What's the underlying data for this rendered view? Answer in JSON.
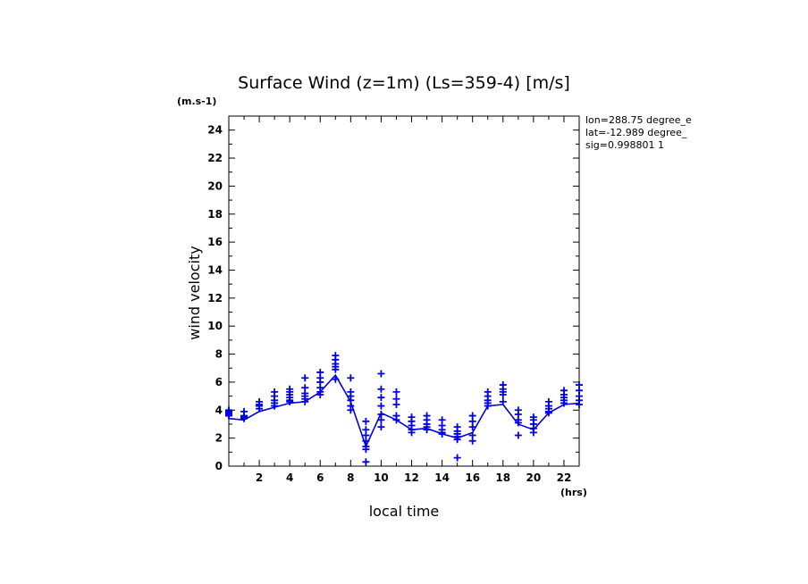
{
  "chart_data": {
    "type": "scatter",
    "title": "Surface Wind (z=1m) (Ls=359-4) [m/s]",
    "units_label": "(m.s-1)",
    "xlabel": "local time",
    "xunit_label": "(hrs)",
    "ylabel": "wind velocity",
    "xlim": [
      0,
      23
    ],
    "ylim": [
      0,
      25
    ],
    "xticks": [
      "2",
      "4",
      "6",
      "8",
      "10",
      "12",
      "14",
      "16",
      "18",
      "20",
      "22"
    ],
    "yticks": [
      "0",
      "2",
      "4",
      "6",
      "8",
      "10",
      "12",
      "14",
      "16",
      "18",
      "20",
      "22",
      "24"
    ],
    "info_lines": [
      "lon=288.75 degree_e",
      "lat=-12.989 degree_",
      "sig=0.998801 1"
    ],
    "color": "#0000dd",
    "grid": false,
    "series": [
      {
        "kind": "line",
        "x": [
          0,
          1,
          2,
          3,
          4,
          5,
          6,
          7,
          8,
          9,
          10,
          11,
          12,
          13,
          14,
          15,
          16,
          17,
          18,
          19,
          20,
          21,
          22,
          23
        ],
        "values": [
          3.4,
          3.3,
          3.9,
          4.2,
          4.5,
          4.6,
          5.3,
          6.5,
          4.6,
          1.4,
          3.8,
          3.3,
          2.6,
          2.7,
          2.3,
          2.0,
          2.4,
          4.3,
          4.4,
          3.0,
          2.6,
          3.8,
          4.4,
          4.5
        ]
      },
      {
        "kind": "scatter",
        "x": [
          0,
          0,
          0,
          0,
          0,
          1,
          1,
          1,
          1,
          2,
          2,
          2,
          2,
          3,
          3,
          3,
          3,
          3,
          4,
          4,
          4,
          4,
          4,
          4,
          5,
          5,
          5,
          5,
          5,
          5,
          6,
          6,
          6,
          6,
          6,
          6,
          7,
          7,
          7,
          7,
          7,
          7,
          8,
          8,
          8,
          8,
          8,
          8,
          9,
          9,
          9,
          9,
          9,
          9,
          9,
          10,
          10,
          10,
          10,
          10,
          10,
          10,
          11,
          11,
          11,
          11,
          11,
          12,
          12,
          12,
          12,
          12,
          13,
          13,
          13,
          13,
          13,
          14,
          14,
          14,
          14,
          14,
          15,
          15,
          15,
          15,
          15,
          15,
          16,
          16,
          16,
          16,
          16,
          17,
          17,
          17,
          17,
          17,
          18,
          18,
          18,
          18,
          18,
          19,
          19,
          19,
          19,
          19,
          20,
          20,
          20,
          20,
          20,
          21,
          21,
          21,
          21,
          21,
          22,
          22,
          22,
          22,
          22,
          23,
          23,
          23,
          23,
          23
        ],
        "values": [
          4.0,
          3.9,
          3.8,
          3.7,
          3.6,
          3.9,
          3.6,
          3.5,
          3.4,
          4.6,
          4.4,
          4.3,
          4.1,
          5.3,
          5.0,
          4.7,
          4.5,
          4.3,
          5.5,
          5.3,
          5.1,
          4.9,
          4.7,
          4.6,
          6.3,
          5.6,
          5.2,
          5.0,
          4.8,
          4.6,
          6.7,
          6.3,
          6.0,
          5.6,
          5.3,
          5.1,
          7.9,
          7.6,
          7.3,
          7.1,
          6.9,
          6.2,
          6.3,
          5.3,
          5.0,
          4.7,
          4.3,
          4.0,
          3.2,
          2.6,
          2.2,
          1.8,
          1.4,
          1.2,
          0.3,
          6.6,
          5.5,
          4.9,
          4.3,
          3.7,
          3.3,
          2.8,
          5.3,
          4.8,
          4.4,
          3.6,
          3.3,
          3.5,
          3.2,
          2.9,
          2.6,
          2.4,
          3.6,
          3.3,
          3.0,
          2.8,
          2.6,
          3.3,
          2.9,
          2.6,
          2.4,
          2.3,
          2.8,
          2.5,
          2.3,
          2.1,
          1.9,
          0.6,
          3.6,
          3.2,
          2.8,
          2.2,
          1.8,
          5.3,
          5.0,
          4.7,
          4.5,
          4.3,
          5.8,
          5.5,
          5.3,
          5.1,
          4.6,
          4.0,
          3.7,
          3.3,
          3.1,
          2.2,
          3.5,
          3.3,
          3.0,
          2.7,
          2.4,
          4.6,
          4.3,
          4.1,
          3.9,
          3.8,
          5.4,
          5.1,
          4.9,
          4.7,
          4.5,
          5.8,
          5.4,
          5.0,
          4.7,
          4.4
        ]
      }
    ]
  }
}
